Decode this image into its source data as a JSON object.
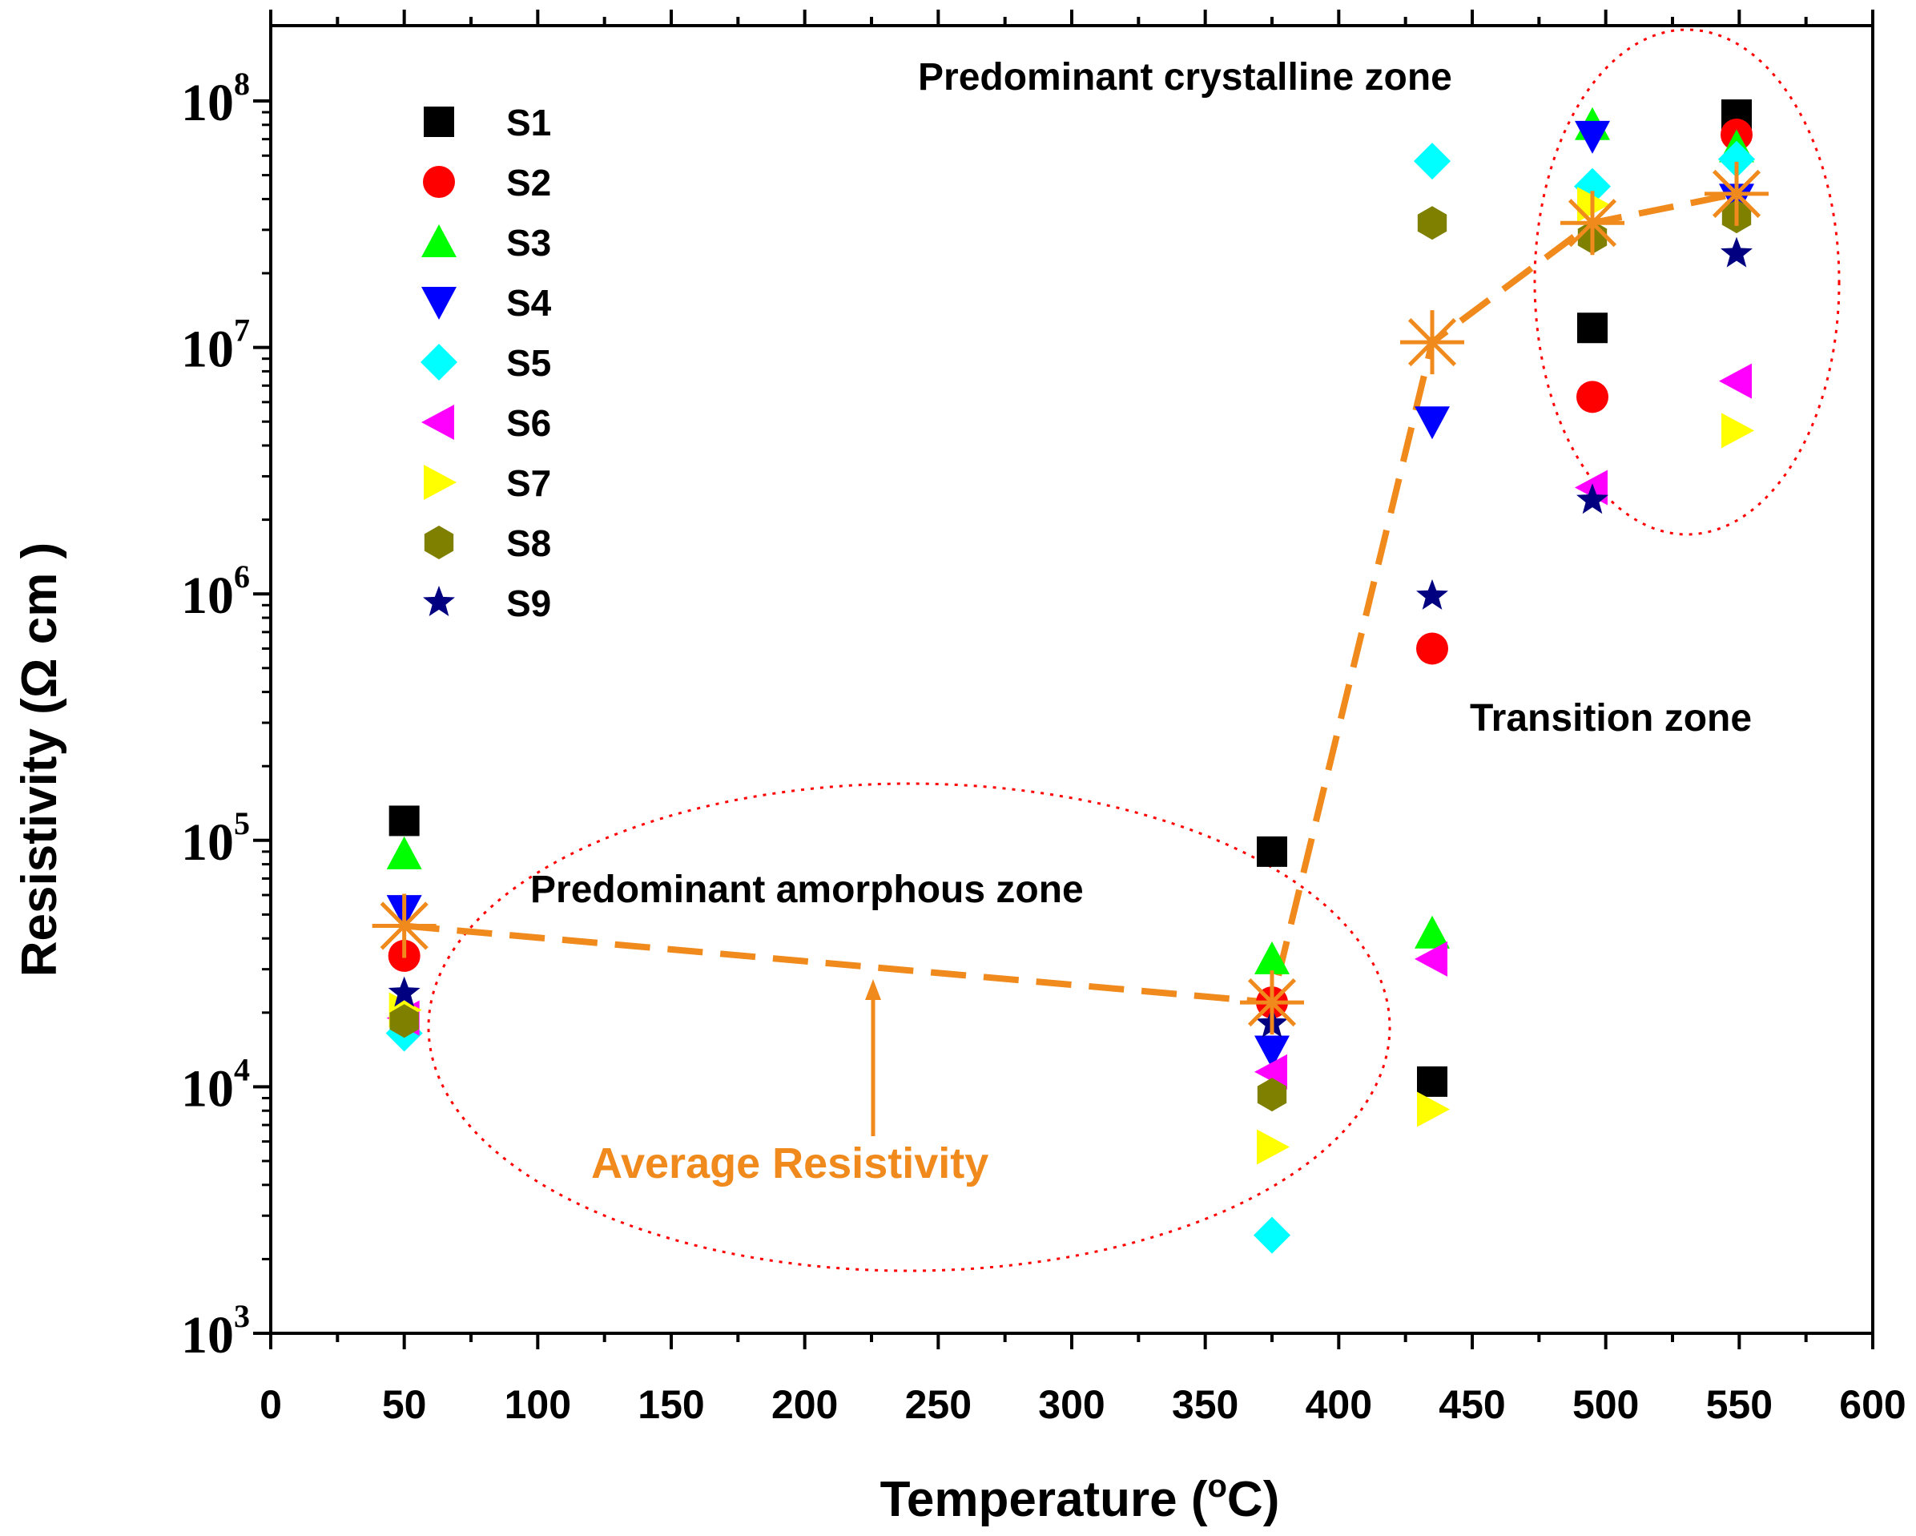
{
  "chart_data": {
    "type": "scatter",
    "xlabel_main": "Temperature (",
    "xlabel_sup": "o",
    "xlabel_end": "C)",
    "ylabel": "Resistivity (Ω cm )",
    "xlim": [
      0,
      600
    ],
    "ylim": [
      1000,
      200000000
    ],
    "y_scale": "log",
    "x_ticks": [
      0,
      50,
      100,
      150,
      200,
      250,
      300,
      350,
      400,
      450,
      500,
      550,
      600
    ],
    "y_decades": [
      {
        "value": 1000,
        "base": "10",
        "exp": "3"
      },
      {
        "value": 10000,
        "base": "10",
        "exp": "4"
      },
      {
        "value": 100000,
        "base": "10",
        "exp": "5"
      },
      {
        "value": 1000000,
        "base": "10",
        "exp": "6"
      },
      {
        "value": 10000000,
        "base": "10",
        "exp": "7"
      },
      {
        "value": 100000000,
        "base": "10",
        "exp": "8"
      }
    ],
    "legend_position": "top-left",
    "series": [
      {
        "name": "S1",
        "marker": "square",
        "color": "#000000",
        "points": [
          [
            50,
            120000
          ],
          [
            375,
            90000
          ],
          [
            435,
            10500
          ],
          [
            495,
            12000000
          ],
          [
            549,
            88000000
          ]
        ]
      },
      {
        "name": "S2",
        "marker": "circle",
        "color": "#ff0000",
        "points": [
          [
            50,
            34000
          ],
          [
            375,
            22000
          ],
          [
            435,
            600000
          ],
          [
            495,
            6300000
          ],
          [
            549,
            73000000
          ]
        ]
      },
      {
        "name": "S3",
        "marker": "triangle-up",
        "color": "#00ff00",
        "points": [
          [
            50,
            88000
          ],
          [
            375,
            33000
          ],
          [
            435,
            42000
          ],
          [
            495,
            80000000
          ],
          [
            549,
            65000000
          ]
        ]
      },
      {
        "name": "S4",
        "marker": "triangle-down",
        "color": "#0000ff",
        "points": [
          [
            50,
            52000
          ],
          [
            375,
            14000
          ],
          [
            435,
            5000000
          ],
          [
            495,
            72000000
          ],
          [
            549,
            40000000
          ]
        ]
      },
      {
        "name": "S5",
        "marker": "diamond",
        "color": "#00ffff",
        "points": [
          [
            50,
            16500
          ],
          [
            375,
            2500
          ],
          [
            435,
            57000000
          ],
          [
            495,
            45000000
          ],
          [
            549,
            58000000
          ]
        ]
      },
      {
        "name": "S6",
        "marker": "triangle-left",
        "color": "#ff00ff",
        "points": [
          [
            50,
            19000
          ],
          [
            375,
            11500
          ],
          [
            435,
            33000
          ],
          [
            495,
            2700000
          ],
          [
            549,
            7300000
          ]
        ]
      },
      {
        "name": "S7",
        "marker": "triangle-right",
        "color": "#ffff00",
        "points": [
          [
            50,
            20500
          ],
          [
            375,
            5700
          ],
          [
            435,
            8100
          ],
          [
            495,
            38000000
          ],
          [
            549,
            4600000
          ]
        ]
      },
      {
        "name": "S8",
        "marker": "hexagon",
        "color": "#808000",
        "points": [
          [
            50,
            18500
          ],
          [
            375,
            9300
          ],
          [
            435,
            32000000
          ],
          [
            495,
            28000000
          ],
          [
            549,
            34000000
          ]
        ]
      },
      {
        "name": "S9",
        "marker": "star",
        "color": "#000080",
        "points": [
          [
            50,
            24000
          ],
          [
            375,
            18000
          ],
          [
            435,
            980000
          ],
          [
            495,
            2400000
          ],
          [
            549,
            24000000
          ]
        ]
      }
    ],
    "average": {
      "name": "Average Resistivity",
      "color": "#f08a1c",
      "points": [
        [
          50,
          45000
        ],
        [
          375,
          22000
        ],
        [
          435,
          10500000
        ],
        [
          495,
          32000000
        ],
        [
          549,
          42000000
        ]
      ]
    },
    "annotations": [
      {
        "text": "Predominant crystalline zone"
      },
      {
        "text": "Transition zone"
      },
      {
        "text": "Predominant amorphous zone"
      },
      {
        "text": "Average Resistivity"
      }
    ]
  }
}
